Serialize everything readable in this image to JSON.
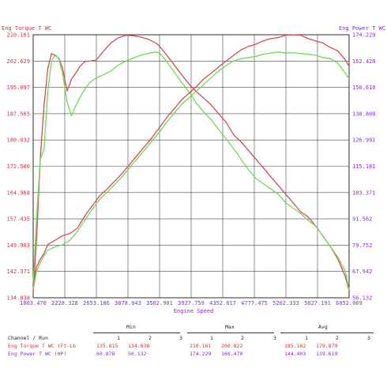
{
  "colors": {
    "torque": "#d94a52",
    "power": "#6edc4e",
    "left_axis_text": "#cc3344",
    "right_axis_text": "#8a2be2",
    "grid": "#444444"
  },
  "chart_data": {
    "type": "line",
    "title": "",
    "xlabel": "Engine Speed",
    "left_axis_title": "Eng Torque T WC",
    "right_axis_title": "Eng Power T WC",
    "xlim": [
      1803.47,
      6052.069
    ],
    "ylim_left": [
      134.838,
      210.161
    ],
    "ylim_right": [
      56.132,
      174.229
    ],
    "grid": true,
    "x_ticks": [
      "1803.470",
      "2228.328",
      "2653.186",
      "3078.043",
      "3502.901",
      "3927.759",
      "4352.617",
      "4777.475",
      "5202.333",
      "5627.191",
      "6052.069"
    ],
    "y_left_ticks": [
      "134.838",
      "142.371",
      "149.903",
      "157.435",
      "164.968",
      "172.500",
      "180.032",
      "187.565",
      "195.097",
      "202.629",
      "210.161"
    ],
    "y_right_ticks": [
      "56.132",
      "67.942",
      "79.752",
      "91.562",
      "103.371",
      "115.181",
      "126.991",
      "138.800",
      "150.610",
      "162.420",
      "174.229"
    ],
    "series": [
      {
        "name": "Eng Torque T WC (Ft-Lb)",
        "axis": "left",
        "run": 1,
        "color": "#d94a52",
        "x": [
          1803,
          1850,
          1900,
          1950,
          2000,
          2050,
          2100,
          2150,
          2200,
          2260,
          2320,
          2380,
          2440,
          2500,
          2560,
          2650,
          2750,
          2850,
          2950,
          3050,
          3150,
          3250,
          3350,
          3450,
          3500,
          3600,
          3700,
          3800,
          3900,
          4000,
          4100,
          4200,
          4300,
          4400,
          4500,
          4600,
          4700,
          4800,
          4900,
          5000,
          5100,
          5200,
          5300,
          5400,
          5500,
          5600,
          5700,
          5800,
          5900,
          6000,
          6052
        ],
        "y": [
          136.0,
          152.0,
          175.0,
          190.0,
          200.5,
          204.8,
          204.2,
          203.4,
          200.5,
          194.0,
          197.5,
          199.3,
          201.3,
          202.5,
          202.6,
          202.9,
          205.5,
          207.8,
          209.3,
          210.0,
          209.9,
          209.5,
          208.9,
          207.8,
          207.0,
          204.3,
          201.5,
          198.7,
          196.0,
          193.8,
          192.0,
          190.0,
          187.5,
          185.0,
          181.5,
          179.5,
          177.0,
          174.5,
          172.0,
          169.5,
          167.0,
          164.5,
          162.0,
          159.5,
          158.0,
          155.5,
          152.5,
          149.5,
          146.0,
          141.0,
          136.8
        ]
      },
      {
        "name": "Eng Torque T WC (Ft-Lb)",
        "axis": "left",
        "run": 2,
        "color": "#6edc4e",
        "x": [
          1803,
          1850,
          1900,
          1950,
          2000,
          2050,
          2100,
          2150,
          2200,
          2260,
          2320,
          2380,
          2440,
          2500,
          2560,
          2650,
          2750,
          2850,
          2950,
          3050,
          3150,
          3250,
          3350,
          3450,
          3500,
          3600,
          3700,
          3800,
          3900,
          4000,
          4100,
          4200,
          4300,
          4400,
          4500,
          4600,
          4700,
          4800,
          4900,
          5000,
          5100,
          5200,
          5300,
          5400,
          5500,
          5600,
          5700,
          5800,
          5900,
          6000,
          6052
        ],
        "y": [
          139.0,
          158.0,
          174.5,
          177.5,
          194.0,
          202.5,
          204.5,
          203.2,
          199.0,
          190.8,
          187.0,
          190.0,
          192.5,
          194.5,
          196.4,
          197.8,
          198.7,
          199.8,
          201.5,
          202.6,
          203.5,
          204.3,
          204.8,
          205.2,
          205.0,
          202.5,
          199.5,
          196.5,
          193.8,
          190.5,
          188.0,
          185.8,
          183.0,
          180.3,
          177.5,
          174.5,
          171.5,
          169.0,
          167.5,
          166.0,
          164.5,
          162.0,
          160.5,
          159.0,
          157.0,
          155.5,
          152.5,
          149.5,
          146.5,
          142.5,
          137.0
        ]
      },
      {
        "name": "Eng Power T WC (HP)",
        "axis": "right",
        "run": 1,
        "color": "#d94a52",
        "x": [
          1803,
          1850,
          1900,
          1950,
          2000,
          2100,
          2200,
          2300,
          2400,
          2500,
          2600,
          2700,
          2800,
          2900,
          3000,
          3100,
          3200,
          3300,
          3400,
          3500,
          3600,
          3700,
          3800,
          3900,
          4000,
          4100,
          4200,
          4300,
          4400,
          4500,
          4600,
          4700,
          4800,
          4900,
          5000,
          5100,
          5200,
          5300,
          5400,
          5500,
          5600,
          5700,
          5800,
          5900,
          6000,
          6052
        ],
        "y": [
          62.0,
          70.0,
          73.5,
          76.0,
          80.0,
          82.0,
          84.0,
          85.0,
          87.5,
          93.0,
          97.5,
          102.0,
          105.0,
          108.5,
          112.0,
          116.0,
          120.0,
          124.0,
          128.0,
          132.5,
          137.0,
          141.0,
          145.0,
          148.0,
          151.0,
          154.5,
          157.0,
          159.8,
          162.5,
          165.0,
          167.5,
          169.0,
          170.0,
          171.5,
          172.5,
          173.0,
          174.0,
          174.2,
          174.0,
          172.5,
          171.5,
          170.5,
          168.5,
          167.0,
          163.0,
          160.0
        ]
      },
      {
        "name": "Eng Power T WC (HP)",
        "axis": "right",
        "run": 2,
        "color": "#6edc4e",
        "x": [
          1803,
          1850,
          1900,
          1950,
          2000,
          2100,
          2200,
          2300,
          2400,
          2500,
          2600,
          2700,
          2800,
          2900,
          3000,
          3100,
          3200,
          3300,
          3400,
          3500,
          3600,
          3700,
          3800,
          3900,
          4000,
          4100,
          4200,
          4300,
          4400,
          4500,
          4600,
          4700,
          4800,
          4900,
          5000,
          5100,
          5200,
          5300,
          5400,
          5500,
          5600,
          5700,
          5800,
          5900,
          6000,
          6052
        ],
        "y": [
          60.0,
          68.0,
          72.0,
          75.0,
          77.5,
          79.0,
          80.0,
          82.0,
          86.0,
          91.0,
          96.0,
          100.5,
          103.5,
          107.0,
          110.5,
          114.5,
          118.5,
          122.5,
          126.5,
          130.5,
          135.0,
          139.0,
          143.0,
          146.0,
          149.0,
          152.0,
          155.0,
          158.0,
          160.5,
          162.5,
          163.5,
          164.0,
          164.5,
          165.5,
          166.0,
          166.5,
          166.0,
          166.2,
          165.8,
          165.5,
          165.0,
          164.0,
          163.5,
          161.5,
          157.0,
          154.5
        ]
      }
    ]
  },
  "stats": {
    "col_min": "Min",
    "col_max": "Max",
    "col_avg": "Avg",
    "header_row": "Channel / Run",
    "run_labels": [
      "1",
      "2",
      "3"
    ],
    "rows": [
      {
        "name": "Eng Torque T WC (Ft-Lb",
        "min": [
          "135.815",
          "134.838",
          ""
        ],
        "max": [
          "210.161",
          "206.822",
          ""
        ],
        "avg": [
          "185.162",
          "179.879",
          ""
        ]
      },
      {
        "name": "Eng Power T WC (HP)",
        "min": [
          "60.878",
          "56.132",
          ""
        ],
        "max": [
          "174.229",
          "166.470",
          ""
        ],
        "avg": [
          "144.403",
          "139.619",
          ""
        ]
      }
    ]
  }
}
